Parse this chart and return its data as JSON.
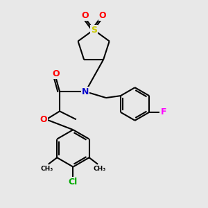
{
  "bg_color": "#e8e8e8",
  "bond_color": "#000000",
  "atom_colors": {
    "O": "#ff0000",
    "N": "#0000cc",
    "S": "#cccc00",
    "F": "#ff00ff",
    "Cl": "#00aa00",
    "C": "#000000"
  },
  "line_width": 1.5,
  "font_size": 9
}
